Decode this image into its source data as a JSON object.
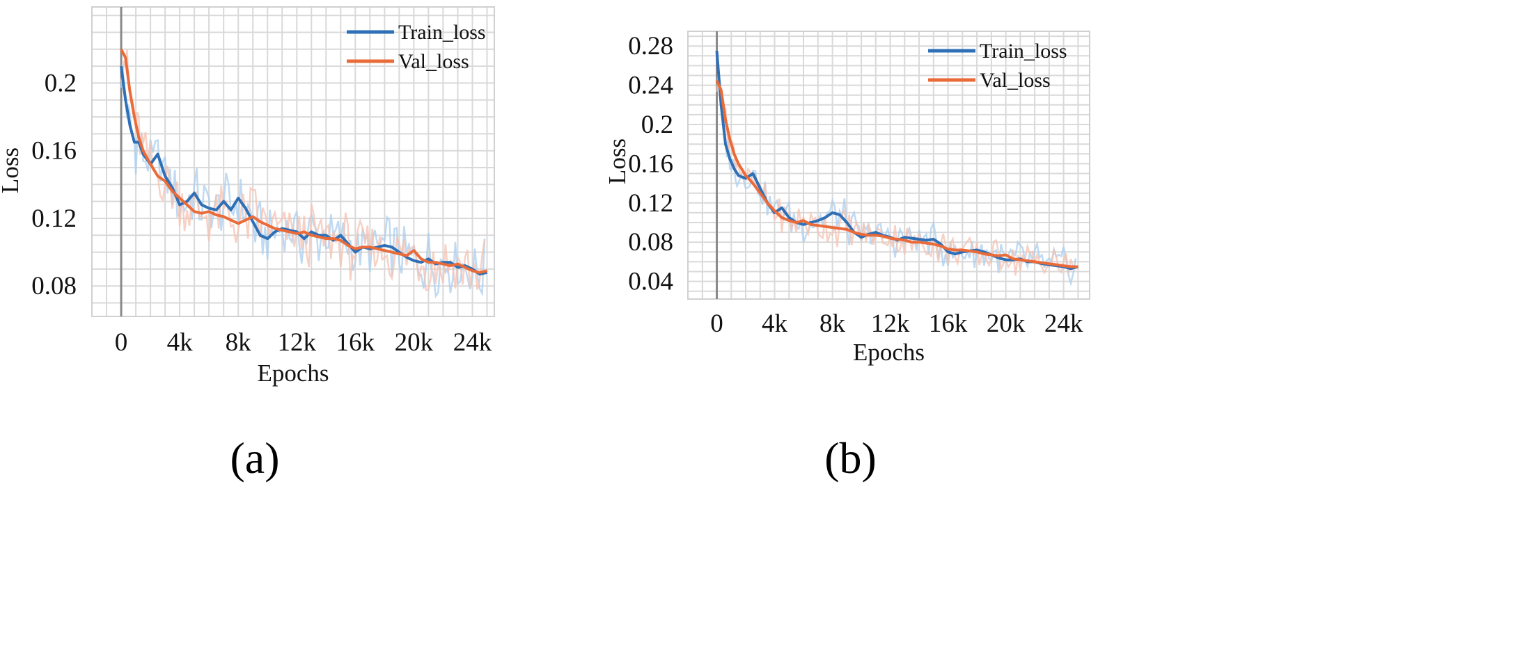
{
  "chart_data": [
    {
      "type": "line",
      "panel_label": "(a)",
      "xlabel": "Epochs",
      "ylabel": "Loss",
      "xticks": [
        "0",
        "4k",
        "8k",
        "12k",
        "16k",
        "20k",
        "24k"
      ],
      "xtick_values": [
        0,
        4000,
        8000,
        12000,
        16000,
        20000,
        24000
      ],
      "yticks": [
        "0.08",
        "0.12",
        "0.16",
        "0.2"
      ],
      "ytick_values": [
        0.08,
        0.12,
        0.16,
        0.2
      ],
      "xlim": [
        -2000,
        25500
      ],
      "ylim": [
        0.062,
        0.245
      ],
      "legend_position": "top-right",
      "series": [
        {
          "name": "Train_loss",
          "color": "#2e6fb5",
          "raw_color": "#a9cdee",
          "x": [
            0,
            300,
            600,
            900,
            1200,
            1500,
            2000,
            2500,
            3000,
            3500,
            4000,
            4500,
            5000,
            5500,
            6000,
            6500,
            7000,
            7500,
            8000,
            8500,
            9000,
            9500,
            10000,
            10500,
            11000,
            11500,
            12000,
            12500,
            13000,
            13500,
            14000,
            14500,
            15000,
            15500,
            16000,
            16500,
            17000,
            17500,
            18000,
            18500,
            19000,
            19500,
            20000,
            20500,
            21000,
            21500,
            22000,
            22500,
            23000,
            23500,
            24000,
            24500,
            25000
          ],
          "values": [
            0.21,
            0.19,
            0.175,
            0.165,
            0.165,
            0.158,
            0.152,
            0.158,
            0.145,
            0.138,
            0.128,
            0.13,
            0.135,
            0.128,
            0.126,
            0.125,
            0.13,
            0.125,
            0.132,
            0.126,
            0.118,
            0.11,
            0.108,
            0.112,
            0.114,
            0.113,
            0.112,
            0.108,
            0.112,
            0.11,
            0.11,
            0.107,
            0.11,
            0.105,
            0.1,
            0.103,
            0.102,
            0.103,
            0.104,
            0.103,
            0.1,
            0.097,
            0.095,
            0.094,
            0.096,
            0.093,
            0.094,
            0.094,
            0.091,
            0.092,
            0.09,
            0.087,
            0.088
          ]
        },
        {
          "name": "Val_loss",
          "color": "#ea6b3a",
          "raw_color": "#f6c2b2",
          "x": [
            0,
            300,
            600,
            900,
            1200,
            1500,
            2000,
            2500,
            3000,
            3500,
            4000,
            4500,
            5000,
            5500,
            6000,
            6500,
            7000,
            7500,
            8000,
            8500,
            9000,
            9500,
            10000,
            10500,
            11000,
            11500,
            12000,
            12500,
            13000,
            13500,
            14000,
            14500,
            15000,
            15500,
            16000,
            16500,
            17000,
            17500,
            18000,
            18500,
            19000,
            19500,
            20000,
            20500,
            21000,
            21500,
            22000,
            22500,
            23000,
            23500,
            24000,
            24500,
            25000
          ],
          "values": [
            0.22,
            0.215,
            0.195,
            0.18,
            0.168,
            0.16,
            0.152,
            0.145,
            0.142,
            0.136,
            0.132,
            0.128,
            0.124,
            0.123,
            0.124,
            0.122,
            0.121,
            0.119,
            0.117,
            0.119,
            0.121,
            0.118,
            0.116,
            0.114,
            0.113,
            0.112,
            0.111,
            0.112,
            0.11,
            0.109,
            0.108,
            0.108,
            0.107,
            0.104,
            0.102,
            0.103,
            0.103,
            0.102,
            0.101,
            0.1,
            0.099,
            0.098,
            0.101,
            0.096,
            0.094,
            0.094,
            0.093,
            0.092,
            0.093,
            0.091,
            0.089,
            0.088,
            0.089
          ]
        }
      ]
    },
    {
      "type": "line",
      "panel_label": "(b)",
      "xlabel": "Epochs",
      "ylabel": "Loss",
      "xticks": [
        "0",
        "4k",
        "8k",
        "12k",
        "16k",
        "20k",
        "24k"
      ],
      "xtick_values": [
        0,
        4000,
        8000,
        12000,
        16000,
        20000,
        24000
      ],
      "yticks": [
        "0.04",
        "0.08",
        "0.12",
        "0.16",
        "0.2",
        "0.24",
        "0.28"
      ],
      "ytick_values": [
        0.04,
        0.08,
        0.12,
        0.16,
        0.2,
        0.24,
        0.28
      ],
      "xlim": [
        -2000,
        25800
      ],
      "ylim": [
        0.022,
        0.295
      ],
      "legend_position": "top-right",
      "series": [
        {
          "name": "Train_loss",
          "color": "#2e6fb5",
          "raw_color": "#a9cdee",
          "x": [
            0,
            300,
            600,
            900,
            1200,
            1500,
            2000,
            2500,
            3000,
            3500,
            4000,
            4500,
            5000,
            5500,
            6000,
            6500,
            7000,
            7500,
            8000,
            8500,
            9000,
            9500,
            10000,
            10500,
            11000,
            11500,
            12000,
            12500,
            13000,
            13500,
            14000,
            14500,
            15000,
            15500,
            16000,
            16500,
            17000,
            17500,
            18000,
            18500,
            19000,
            19500,
            20000,
            20500,
            21000,
            21500,
            22000,
            22500,
            23000,
            23500,
            24000,
            24500,
            25000
          ],
          "values": [
            0.275,
            0.22,
            0.18,
            0.165,
            0.155,
            0.148,
            0.145,
            0.15,
            0.135,
            0.12,
            0.11,
            0.115,
            0.105,
            0.1,
            0.098,
            0.1,
            0.102,
            0.105,
            0.11,
            0.108,
            0.1,
            0.09,
            0.085,
            0.088,
            0.09,
            0.087,
            0.085,
            0.082,
            0.085,
            0.084,
            0.083,
            0.082,
            0.083,
            0.078,
            0.07,
            0.068,
            0.07,
            0.071,
            0.072,
            0.07,
            0.067,
            0.064,
            0.062,
            0.062,
            0.063,
            0.06,
            0.06,
            0.058,
            0.057,
            0.056,
            0.055,
            0.053,
            0.055
          ]
        },
        {
          "name": "Val_loss",
          "color": "#ea6b3a",
          "raw_color": "#f6c2b2",
          "x": [
            0,
            300,
            600,
            900,
            1200,
            1500,
            2000,
            2500,
            3000,
            3500,
            4000,
            4500,
            5000,
            5500,
            6000,
            6500,
            7000,
            7500,
            8000,
            8500,
            9000,
            9500,
            10000,
            10500,
            11000,
            11500,
            12000,
            12500,
            13000,
            13500,
            14000,
            14500,
            15000,
            15500,
            16000,
            16500,
            17000,
            17500,
            18000,
            18500,
            19000,
            19500,
            20000,
            20500,
            21000,
            21500,
            22000,
            22500,
            23000,
            23500,
            24000,
            24500,
            25000
          ],
          "values": [
            0.245,
            0.235,
            0.205,
            0.185,
            0.17,
            0.16,
            0.148,
            0.14,
            0.13,
            0.12,
            0.112,
            0.105,
            0.102,
            0.1,
            0.102,
            0.098,
            0.097,
            0.096,
            0.095,
            0.094,
            0.093,
            0.09,
            0.088,
            0.087,
            0.087,
            0.086,
            0.084,
            0.083,
            0.082,
            0.08,
            0.08,
            0.079,
            0.078,
            0.076,
            0.073,
            0.072,
            0.072,
            0.071,
            0.07,
            0.068,
            0.067,
            0.066,
            0.067,
            0.063,
            0.062,
            0.061,
            0.06,
            0.059,
            0.058,
            0.057,
            0.056,
            0.055,
            0.055
          ]
        }
      ]
    }
  ]
}
